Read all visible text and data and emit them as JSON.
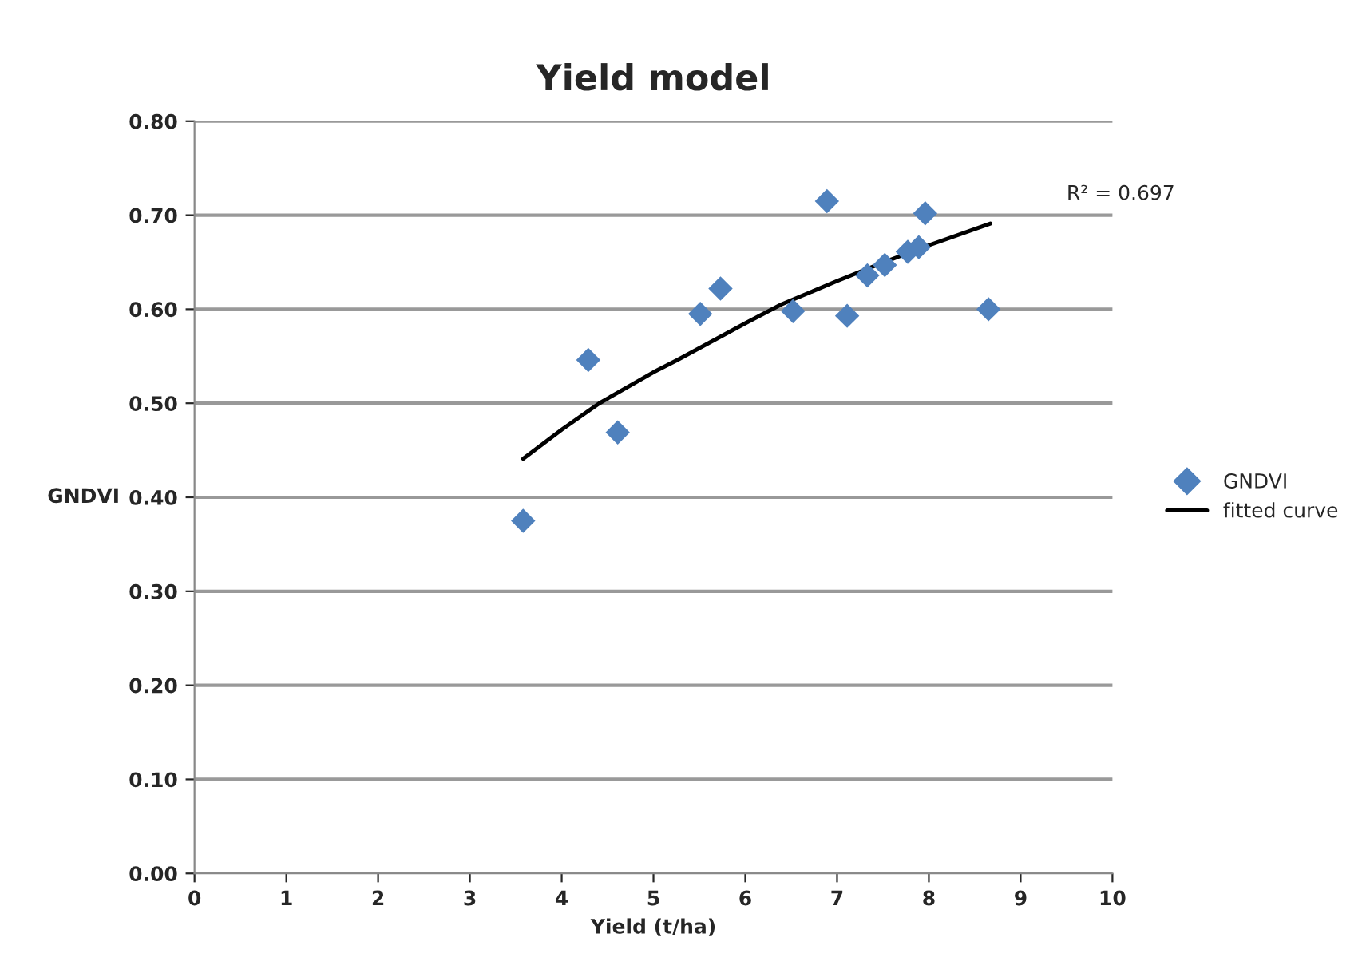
{
  "chart_data": {
    "type": "scatter",
    "title": "Yield model",
    "xlabel": "Yield (t/ha)",
    "ylabel": "GNDVI",
    "xlim": [
      0,
      10
    ],
    "xticks": [
      0,
      1,
      2,
      3,
      4,
      5,
      6,
      7,
      8,
      9,
      10
    ],
    "ylim": [
      0,
      0.8
    ],
    "yticks": [
      {
        "value": 0,
        "label": "0.00"
      },
      {
        "value": 0.1,
        "label": "0.10"
      },
      {
        "value": 0.2,
        "label": "0.20"
      },
      {
        "value": 0.3,
        "label": "0.30"
      },
      {
        "value": 0.4,
        "label": "0.40"
      },
      {
        "value": 0.5,
        "label": "0.50"
      },
      {
        "value": 0.6,
        "label": "0.60"
      },
      {
        "value": 0.7,
        "label": "0.70"
      },
      {
        "value": 0.8,
        "label": "0.80"
      }
    ],
    "grid": "y",
    "legend": "right",
    "annotations": [
      "R² = 0.697"
    ],
    "series": [
      {
        "name": "GNDVI",
        "marker": "diamond",
        "color": "#4f81bd",
        "x": [
          3.58,
          4.29,
          4.61,
          5.51,
          5.73,
          6.52,
          6.89,
          7.11,
          7.33,
          7.52,
          7.77,
          7.89,
          7.96,
          8.65
        ],
        "values": [
          0.375,
          0.546,
          0.469,
          0.595,
          0.622,
          0.598,
          0.715,
          0.593,
          0.636,
          0.647,
          0.661,
          0.666,
          0.702,
          0.6
        ]
      },
      {
        "name": "fitted curve",
        "type": "line",
        "color": "#000000",
        "line_style": "solid",
        "marker": "none",
        "x": [
          3.58,
          4.0,
          4.41,
          5.0,
          5.26,
          6.0,
          6.39,
          7.0,
          7.51,
          8.0,
          8.67
        ],
        "values": [
          0.441,
          0.472,
          0.5,
          0.533,
          0.546,
          0.585,
          0.605,
          0.63,
          0.65,
          0.668,
          0.691
        ]
      }
    ]
  }
}
